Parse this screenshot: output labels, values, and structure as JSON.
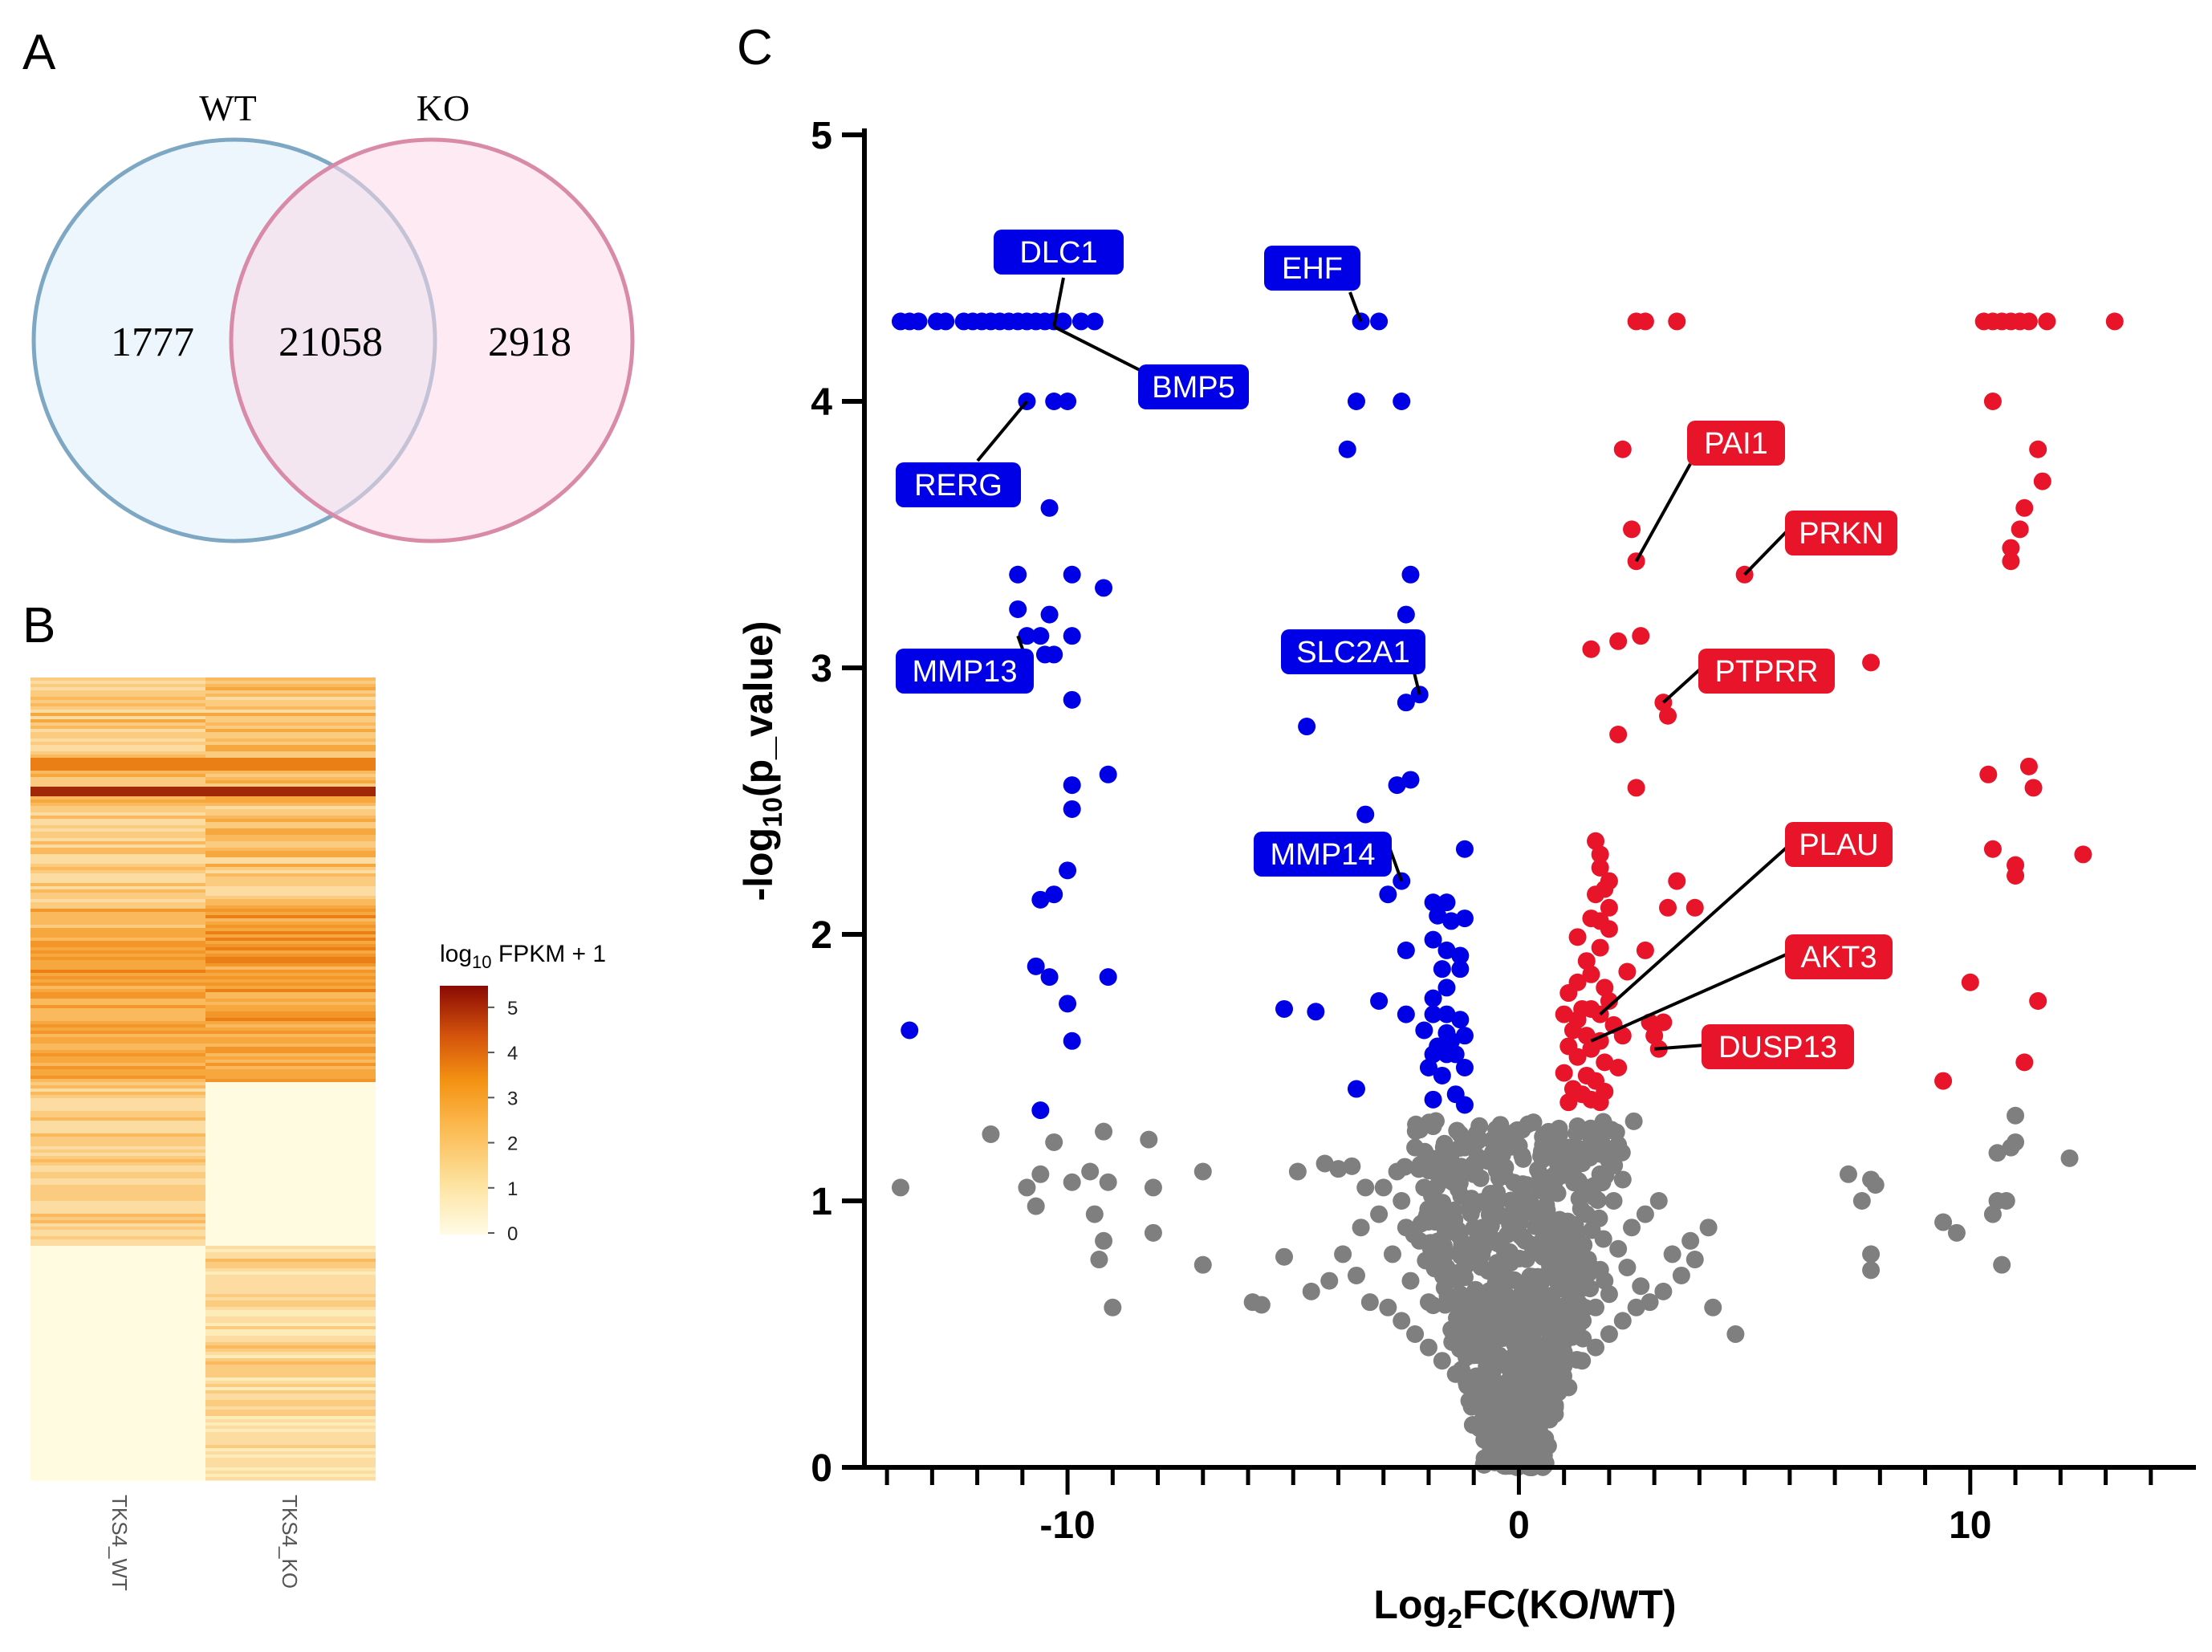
{
  "panels": {
    "a": "A",
    "b": "B",
    "c": "C"
  },
  "venn": {
    "left_label": "WT",
    "right_label": "KO",
    "left_only": "1777",
    "shared": "21058",
    "right_only": "2918",
    "left_color": "#7ea7c3",
    "right_color": "#d88aa7"
  },
  "heatmap": {
    "columns": [
      "TKS4_WT",
      "TKS4_KO"
    ],
    "legend_title_base": "log",
    "legend_title_sub": "10",
    "legend_title_rest": " FPKM + 1",
    "legend_ticks": [
      "0",
      "1",
      "2",
      "3",
      "4",
      "5"
    ]
  },
  "chart_data": {
    "type": "scatter",
    "title": "",
    "xlabel_base": "Log",
    "xlabel_sub": "2",
    "xlabel_rest": "FC(KO/WT)",
    "ylabel_base": "-log",
    "ylabel_sub": "10",
    "ylabel_rest": "(p_value)",
    "xlim": [
      -14.5,
      15
    ],
    "ylim": [
      0,
      5
    ],
    "x_ticks": [
      "-10",
      "0",
      "10"
    ],
    "y_ticks": [
      "0",
      "1",
      "2",
      "3",
      "4",
      "5"
    ],
    "colors": {
      "down": "#0000e6",
      "up": "#e8142a",
      "ns": "#7f7f7f"
    },
    "down_points": [
      [
        -13.7,
        4.3
      ],
      [
        -13.5,
        4.3
      ],
      [
        -13.3,
        4.3
      ],
      [
        -12.9,
        4.3
      ],
      [
        -12.7,
        4.3
      ],
      [
        -12.3,
        4.3
      ],
      [
        -12.1,
        4.3
      ],
      [
        -11.9,
        4.3
      ],
      [
        -11.7,
        4.3
      ],
      [
        -11.5,
        4.3
      ],
      [
        -11.3,
        4.3
      ],
      [
        -11.1,
        4.3
      ],
      [
        -10.9,
        4.3
      ],
      [
        -10.7,
        4.3
      ],
      [
        -10.5,
        4.3
      ],
      [
        -10.3,
        4.3
      ],
      [
        -10.1,
        4.3
      ],
      [
        -9.7,
        4.3
      ],
      [
        -9.4,
        4.3
      ],
      [
        -10.9,
        4.0
      ],
      [
        -10.3,
        4.0
      ],
      [
        -10.0,
        4.0
      ],
      [
        -10.4,
        3.6
      ],
      [
        -11.1,
        3.35
      ],
      [
        -9.9,
        3.35
      ],
      [
        -9.2,
        3.3
      ],
      [
        -11.1,
        3.22
      ],
      [
        -10.4,
        3.2
      ],
      [
        -10.9,
        3.12
      ],
      [
        -10.6,
        3.12
      ],
      [
        -9.9,
        3.12
      ],
      [
        -10.5,
        3.05
      ],
      [
        -10.3,
        3.05
      ],
      [
        -9.9,
        2.88
      ],
      [
        -9.1,
        2.6
      ],
      [
        -9.9,
        2.56
      ],
      [
        -9.9,
        2.47
      ],
      [
        -10.0,
        2.24
      ],
      [
        -10.3,
        2.15
      ],
      [
        -10.6,
        2.13
      ],
      [
        -10.7,
        1.88
      ],
      [
        -10.4,
        1.84
      ],
      [
        -9.1,
        1.84
      ],
      [
        -10.0,
        1.74
      ],
      [
        -9.9,
        1.6
      ],
      [
        -13.5,
        1.64
      ],
      [
        -10.6,
        1.34
      ],
      [
        -3.5,
        4.3
      ],
      [
        -3.1,
        4.3
      ],
      [
        -3.6,
        4.0
      ],
      [
        -2.6,
        4.0
      ],
      [
        -3.8,
        3.82
      ],
      [
        -2.4,
        3.35
      ],
      [
        -2.5,
        3.2
      ],
      [
        -2.2,
        2.9
      ],
      [
        -2.5,
        2.87
      ],
      [
        -4.7,
        2.78
      ],
      [
        -2.4,
        2.58
      ],
      [
        -2.7,
        2.56
      ],
      [
        -3.4,
        2.45
      ],
      [
        -1.2,
        2.32
      ],
      [
        -2.6,
        2.2
      ],
      [
        -2.9,
        2.15
      ],
      [
        -1.9,
        2.12
      ],
      [
        -1.6,
        2.12
      ],
      [
        -1.8,
        2.07
      ],
      [
        -1.5,
        2.05
      ],
      [
        -1.2,
        2.06
      ],
      [
        -1.9,
        1.98
      ],
      [
        -2.5,
        1.94
      ],
      [
        -1.6,
        1.94
      ],
      [
        -1.3,
        1.92
      ],
      [
        -1.7,
        1.87
      ],
      [
        -1.3,
        1.87
      ],
      [
        -1.6,
        1.8
      ],
      [
        -1.9,
        1.76
      ],
      [
        -3.1,
        1.75
      ],
      [
        -5.2,
        1.72
      ],
      [
        -4.5,
        1.71
      ],
      [
        -1.9,
        1.7
      ],
      [
        -1.6,
        1.7
      ],
      [
        -2.5,
        1.7
      ],
      [
        -1.3,
        1.68
      ],
      [
        -2.1,
        1.64
      ],
      [
        -1.6,
        1.63
      ],
      [
        -1.2,
        1.62
      ],
      [
        -1.5,
        1.6
      ],
      [
        -1.8,
        1.58
      ],
      [
        -1.4,
        1.55
      ],
      [
        -1.9,
        1.55
      ],
      [
        -1.6,
        1.55
      ],
      [
        -1.2,
        1.5
      ],
      [
        -2.0,
        1.5
      ],
      [
        -1.7,
        1.47
      ],
      [
        -3.6,
        1.42
      ],
      [
        -1.4,
        1.4
      ],
      [
        -1.9,
        1.38
      ],
      [
        -1.2,
        1.36
      ]
    ],
    "up_points": [
      [
        2.6,
        4.3
      ],
      [
        2.8,
        4.3
      ],
      [
        3.5,
        4.3
      ],
      [
        10.3,
        4.3
      ],
      [
        10.5,
        4.3
      ],
      [
        10.7,
        4.3
      ],
      [
        10.9,
        4.3
      ],
      [
        11.1,
        4.3
      ],
      [
        11.3,
        4.3
      ],
      [
        11.7,
        4.3
      ],
      [
        13.2,
        4.3
      ],
      [
        10.5,
        4.0
      ],
      [
        2.3,
        3.82
      ],
      [
        11.5,
        3.82
      ],
      [
        11.6,
        3.7
      ],
      [
        11.2,
        3.6
      ],
      [
        2.5,
        3.52
      ],
      [
        11.1,
        3.52
      ],
      [
        10.9,
        3.45
      ],
      [
        10.9,
        3.4
      ],
      [
        2.6,
        3.4
      ],
      [
        5.0,
        3.35
      ],
      [
        2.7,
        3.12
      ],
      [
        2.2,
        3.1
      ],
      [
        1.6,
        3.07
      ],
      [
        7.8,
        3.02
      ],
      [
        3.2,
        2.87
      ],
      [
        3.3,
        2.82
      ],
      [
        2.2,
        2.75
      ],
      [
        11.3,
        2.63
      ],
      [
        10.4,
        2.6
      ],
      [
        11.4,
        2.55
      ],
      [
        2.6,
        2.55
      ],
      [
        1.7,
        2.35
      ],
      [
        1.8,
        2.3
      ],
      [
        10.5,
        2.32
      ],
      [
        12.5,
        2.3
      ],
      [
        1.8,
        2.25
      ],
      [
        11.0,
        2.26
      ],
      [
        11.0,
        2.22
      ],
      [
        2.0,
        2.2
      ],
      [
        3.5,
        2.2
      ],
      [
        1.9,
        2.17
      ],
      [
        1.7,
        2.15
      ],
      [
        2.0,
        2.1
      ],
      [
        3.3,
        2.1
      ],
      [
        3.9,
        2.1
      ],
      [
        1.6,
        2.06
      ],
      [
        1.8,
        2.05
      ],
      [
        2.0,
        2.02
      ],
      [
        1.3,
        1.99
      ],
      [
        1.8,
        1.95
      ],
      [
        2.8,
        1.94
      ],
      [
        1.5,
        1.9
      ],
      [
        1.6,
        1.85
      ],
      [
        2.4,
        1.86
      ],
      [
        1.3,
        1.82
      ],
      [
        10.0,
        1.82
      ],
      [
        1.9,
        1.8
      ],
      [
        1.1,
        1.78
      ],
      [
        2.0,
        1.75
      ],
      [
        11.5,
        1.75
      ],
      [
        1.4,
        1.72
      ],
      [
        1.6,
        1.72
      ],
      [
        1.8,
        1.7
      ],
      [
        1.0,
        1.7
      ],
      [
        1.3,
        1.68
      ],
      [
        2.1,
        1.66
      ],
      [
        2.9,
        1.67
      ],
      [
        3.2,
        1.67
      ],
      [
        1.2,
        1.64
      ],
      [
        1.5,
        1.62
      ],
      [
        2.3,
        1.62
      ],
      [
        3.0,
        1.62
      ],
      [
        1.8,
        1.6
      ],
      [
        1.1,
        1.58
      ],
      [
        1.6,
        1.57
      ],
      [
        3.1,
        1.57
      ],
      [
        1.3,
        1.54
      ],
      [
        1.9,
        1.52
      ],
      [
        11.2,
        1.52
      ],
      [
        2.2,
        1.5
      ],
      [
        1.0,
        1.48
      ],
      [
        1.5,
        1.47
      ],
      [
        1.7,
        1.45
      ],
      [
        9.4,
        1.45
      ],
      [
        1.2,
        1.42
      ],
      [
        1.9,
        1.41
      ],
      [
        1.4,
        1.4
      ],
      [
        1.6,
        1.38
      ],
      [
        1.1,
        1.37
      ],
      [
        1.8,
        1.37
      ]
    ],
    "ns_points": [
      [
        -13.7,
        1.05
      ],
      [
        -11.7,
        1.25
      ],
      [
        -10.3,
        1.22
      ],
      [
        -9.2,
        1.26
      ],
      [
        -8.2,
        1.23
      ],
      [
        -7.0,
        1.11
      ],
      [
        -10.9,
        1.05
      ],
      [
        -10.6,
        1.1
      ],
      [
        -9.9,
        1.07
      ],
      [
        -9.5,
        1.11
      ],
      [
        -9.1,
        1.07
      ],
      [
        -8.1,
        1.05
      ],
      [
        -10.7,
        0.98
      ],
      [
        -9.4,
        0.95
      ],
      [
        -8.1,
        0.88
      ],
      [
        -7.0,
        0.76
      ],
      [
        -9.0,
        0.6
      ],
      [
        -9.3,
        0.78
      ],
      [
        -9.2,
        0.85
      ],
      [
        -5.9,
        0.62
      ],
      [
        -5.7,
        0.61
      ],
      [
        -5.2,
        0.79
      ],
      [
        -4.6,
        0.66
      ],
      [
        -4.9,
        1.11
      ],
      [
        -4.3,
        1.14
      ],
      [
        -4.0,
        1.12
      ],
      [
        -3.7,
        1.13
      ],
      [
        -3.4,
        1.05
      ],
      [
        -3.0,
        1.05
      ],
      [
        -2.7,
        1.11
      ],
      [
        -3.5,
        0.9
      ],
      [
        -3.9,
        0.8
      ],
      [
        -3.6,
        0.72
      ],
      [
        -4.2,
        0.7
      ],
      [
        -3.3,
        0.62
      ],
      [
        -2.9,
        0.6
      ],
      [
        -2.6,
        0.55
      ],
      [
        -2.3,
        0.5
      ],
      [
        -2.0,
        0.45
      ],
      [
        -1.7,
        0.4
      ],
      [
        -1.4,
        0.35
      ],
      [
        -1.1,
        0.25
      ],
      [
        -0.8,
        0.18
      ],
      [
        -0.5,
        0.12
      ],
      [
        -0.3,
        0.05
      ],
      [
        -2.5,
        0.9
      ],
      [
        -2.2,
        0.85
      ],
      [
        -1.9,
        0.8
      ],
      [
        -1.6,
        0.75
      ],
      [
        -1.3,
        0.65
      ],
      [
        -1.0,
        0.5
      ],
      [
        -0.7,
        0.35
      ],
      [
        -2.8,
        0.8
      ],
      [
        -2.4,
        0.7
      ],
      [
        -2.0,
        0.62
      ],
      [
        -1.2,
        1.2
      ],
      [
        -1.0,
        1.1
      ],
      [
        -0.8,
        0.9
      ],
      [
        -0.6,
        0.6
      ],
      [
        -3.1,
        0.95
      ],
      [
        -2.6,
        1.0
      ],
      [
        -2.1,
        1.05
      ],
      [
        -1.8,
        1.1
      ],
      [
        -1.5,
        1.15
      ],
      [
        -1.3,
        1.25
      ],
      [
        -2.3,
        1.2
      ],
      [
        -1.9,
        1.28
      ],
      [
        0.3,
        0.05
      ],
      [
        0.5,
        0.12
      ],
      [
        0.8,
        0.2
      ],
      [
        1.1,
        0.3
      ],
      [
        1.4,
        0.4
      ],
      [
        1.7,
        0.45
      ],
      [
        2.0,
        0.5
      ],
      [
        2.3,
        0.55
      ],
      [
        2.6,
        0.6
      ],
      [
        2.9,
        0.62
      ],
      [
        3.2,
        0.66
      ],
      [
        3.6,
        0.72
      ],
      [
        3.9,
        0.78
      ],
      [
        4.2,
        0.9
      ],
      [
        4.8,
        0.5
      ],
      [
        4.3,
        0.6
      ],
      [
        0.9,
        1.25
      ],
      [
        1.1,
        1.2
      ],
      [
        1.2,
        1.1
      ],
      [
        1.0,
        0.9
      ],
      [
        1.3,
        0.8
      ],
      [
        1.6,
        0.75
      ],
      [
        1.9,
        0.7
      ],
      [
        2.2,
        0.82
      ],
      [
        2.5,
        0.9
      ],
      [
        2.8,
        0.95
      ],
      [
        3.1,
        1.0
      ],
      [
        1.5,
        1.05
      ],
      [
        1.8,
        1.1
      ],
      [
        2.1,
        1.0
      ],
      [
        2.4,
        0.75
      ],
      [
        2.7,
        0.68
      ],
      [
        3.4,
        0.8
      ],
      [
        3.8,
        0.85
      ],
      [
        0.7,
        0.6
      ],
      [
        0.6,
        0.4
      ],
      [
        1.4,
        0.55
      ],
      [
        1.7,
        0.6
      ],
      [
        2.0,
        0.65
      ],
      [
        0.9,
        0.7
      ],
      [
        1.2,
        0.62
      ],
      [
        1.5,
        0.95
      ],
      [
        1.3,
        1.28
      ],
      [
        1.6,
        1.22
      ],
      [
        2.3,
        1.08
      ],
      [
        7.3,
        1.1
      ],
      [
        7.8,
        1.08
      ],
      [
        7.6,
        1.0
      ],
      [
        7.9,
        1.06
      ],
      [
        7.8,
        0.8
      ],
      [
        7.8,
        0.74
      ],
      [
        9.4,
        0.92
      ],
      [
        9.7,
        0.88
      ],
      [
        10.6,
        1.0
      ],
      [
        10.8,
        1.0
      ],
      [
        10.9,
        1.2
      ],
      [
        11.0,
        1.22
      ],
      [
        11.0,
        1.32
      ],
      [
        10.6,
        1.18
      ],
      [
        10.5,
        0.95
      ],
      [
        10.7,
        0.76
      ],
      [
        12.2,
        1.16
      ]
    ],
    "genes": [
      {
        "label": "DLC1",
        "color": "#0000e6"
      },
      {
        "label": "EHF",
        "color": "#0000e6"
      },
      {
        "label": "BMP5",
        "color": "#0000e6"
      },
      {
        "label": "RERG",
        "color": "#0000e6"
      },
      {
        "label": "MMP13",
        "color": "#0000e6"
      },
      {
        "label": "SLC2A1",
        "color": "#0000e6"
      },
      {
        "label": "MMP14",
        "color": "#0000e6"
      },
      {
        "label": "PAI1",
        "color": "#e8142a"
      },
      {
        "label": "PRKN",
        "color": "#e8142a"
      },
      {
        "label": "PTPRR",
        "color": "#e8142a"
      },
      {
        "label": "PLAU",
        "color": "#e8142a"
      },
      {
        "label": "AKT3",
        "color": "#e8142a"
      },
      {
        "label": "DUSP13",
        "color": "#e8142a"
      }
    ]
  }
}
